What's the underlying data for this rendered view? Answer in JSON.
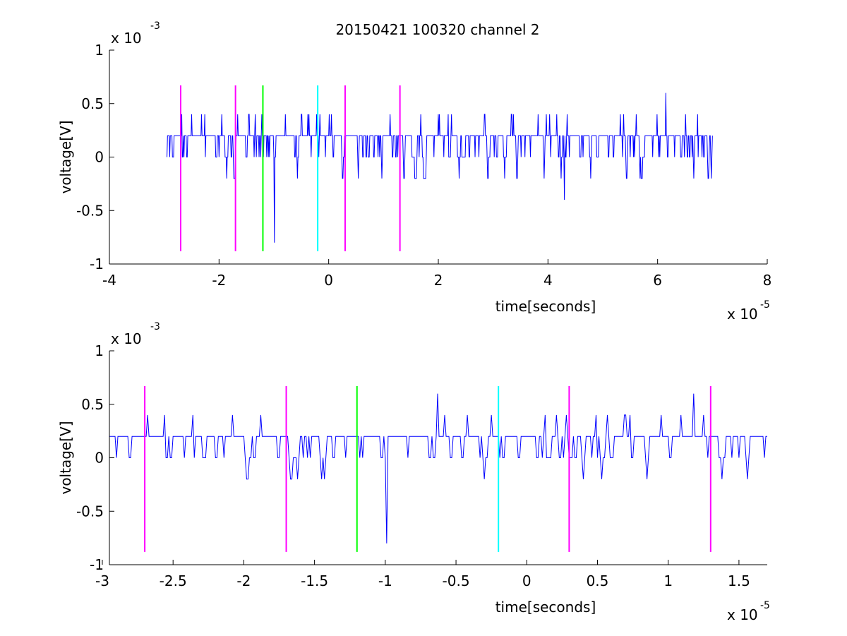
{
  "title": "20150421 100320 channel 2",
  "colors": {
    "signal": "#0000ff",
    "marker_magenta": "#ff00ff",
    "marker_green": "#00ff00",
    "marker_cyan": "#00ffff",
    "axes": "#000000",
    "background": "#ffffff"
  },
  "chart_data": [
    {
      "type": "line",
      "name": "full-trace",
      "xlabel": "time[seconds]",
      "ylabel": "voltage[V]",
      "x_exponent_label": "x 10",
      "x_exponent": "-5",
      "y_exponent_label": "x 10",
      "y_exponent": "-3",
      "xlim": [
        -4e-05,
        8e-05
      ],
      "ylim": [
        -0.001,
        0.001
      ],
      "xticks": [
        -4e-05,
        -2e-05,
        0,
        2e-05,
        4e-05,
        6e-05,
        8e-05
      ],
      "xtick_labels": [
        "-4",
        "-2",
        "0",
        "2",
        "4",
        "6",
        "8"
      ],
      "yticks": [
        -0.001,
        -0.0005,
        0,
        0.0005,
        0.001
      ],
      "ytick_labels": [
        "-1",
        "-0.5",
        "0",
        "0.5",
        "1"
      ],
      "grid": false,
      "signal": {
        "x_start": -2.95e-05,
        "x_end": 7e-05,
        "levels": [
          -0.0004,
          -0.0002,
          0,
          0.0002,
          0.0004,
          0.0006
        ],
        "notable_points": [
          {
            "x": -9.9e-06,
            "y": -0.0008
          },
          {
            "x": 4.3e-05,
            "y": -0.0004
          },
          {
            "x": 6.15e-05,
            "y": 0.0006
          }
        ]
      },
      "markers": [
        {
          "x": -2.7e-05,
          "color": "magenta",
          "y_range": [
            -0.00088,
            0.00067
          ]
        },
        {
          "x": -1.7e-05,
          "color": "magenta",
          "y_range": [
            -0.00088,
            0.00067
          ]
        },
        {
          "x": -1.2e-05,
          "color": "green",
          "y_range": [
            -0.00088,
            0.00067
          ]
        },
        {
          "x": -2e-06,
          "color": "cyan",
          "y_range": [
            -0.00088,
            0.00067
          ]
        },
        {
          "x": 3e-06,
          "color": "magenta",
          "y_range": [
            -0.00088,
            0.00067
          ]
        },
        {
          "x": 1.3e-05,
          "color": "magenta",
          "y_range": [
            -0.00088,
            0.00067
          ]
        }
      ]
    },
    {
      "type": "line",
      "name": "zoomed-trace",
      "xlabel": "time[seconds]",
      "ylabel": "voltage[V]",
      "x_exponent_label": "x 10",
      "x_exponent": "-5",
      "y_exponent_label": "x 10",
      "y_exponent": "-3",
      "xlim": [
        -2.95e-05,
        1.7e-05
      ],
      "ylim": [
        -0.001,
        0.001
      ],
      "xticks": [
        -3e-05,
        -2.5e-05,
        -2e-05,
        -1.5e-05,
        -1e-05,
        -5e-06,
        0,
        5e-06,
        1e-05,
        1.5e-05
      ],
      "xtick_labels": [
        "-3",
        "-2.5",
        "-2",
        "-1.5",
        "-1",
        "-0.5",
        "0",
        "0.5",
        "1",
        "1.5"
      ],
      "yticks": [
        -0.001,
        -0.0005,
        0,
        0.0005,
        0.001
      ],
      "ytick_labels": [
        "-1",
        "-0.5",
        "0",
        "0.5",
        "1"
      ],
      "grid": false,
      "signal": {
        "x_start": -2.95e-05,
        "x_end": 1.7e-05,
        "levels": [
          -0.0002,
          0,
          0.0002,
          0.0004,
          0.0006
        ],
        "notable_points": [
          {
            "x": -9.9e-06,
            "y": -0.0008
          },
          {
            "x": -6.3e-06,
            "y": 0.0006
          },
          {
            "x": 1.18e-05,
            "y": 0.0006
          }
        ]
      },
      "markers": [
        {
          "x": -2.7e-05,
          "color": "magenta",
          "y_range": [
            -0.00088,
            0.00067
          ]
        },
        {
          "x": -1.7e-05,
          "color": "magenta",
          "y_range": [
            -0.00088,
            0.00067
          ]
        },
        {
          "x": -1.2e-05,
          "color": "green",
          "y_range": [
            -0.00088,
            0.00067
          ]
        },
        {
          "x": -2e-06,
          "color": "cyan",
          "y_range": [
            -0.00088,
            0.00067
          ]
        },
        {
          "x": 3e-06,
          "color": "magenta",
          "y_range": [
            -0.00088,
            0.00067
          ]
        },
        {
          "x": 1.3e-05,
          "color": "magenta",
          "y_range": [
            -0.00088,
            0.00067
          ]
        }
      ]
    }
  ]
}
